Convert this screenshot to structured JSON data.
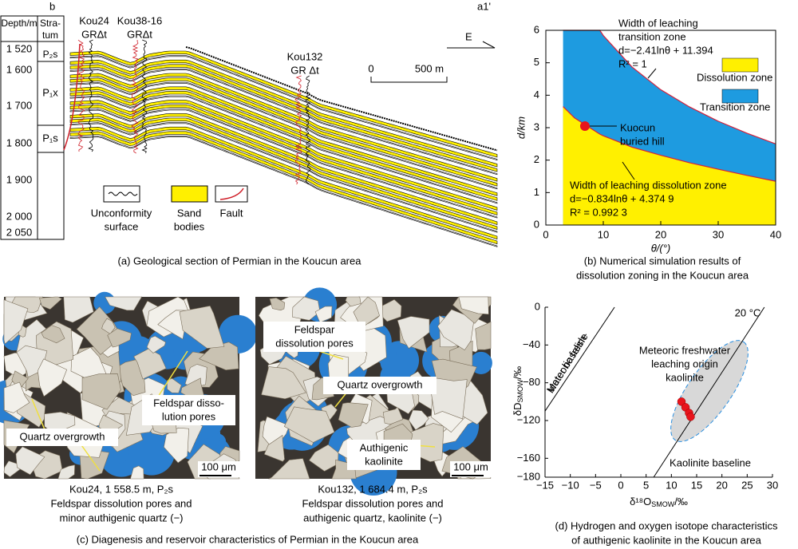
{
  "panel_a": {
    "label": "b",
    "corner_label": "a1'",
    "depth_header": "Depth/m",
    "stratum_header": [
      "Stra-",
      "tum"
    ],
    "depths": [
      "1 520",
      "1 600",
      "1 700",
      "1 800",
      "1 900",
      "2 000",
      "2 050"
    ],
    "strata": [
      "P₂s",
      "P₁x",
      "P₁s"
    ],
    "wells": [
      {
        "name": "Kou24",
        "logs": "GRΔt"
      },
      {
        "name": "Kou38-16",
        "logs": "GRΔt"
      },
      {
        "name": "Kou132",
        "logs": "GR Δt"
      }
    ],
    "direction": "E",
    "scale": [
      "0",
      "500 m"
    ],
    "legend": [
      [
        "Unconformity",
        "surface"
      ],
      [
        "Sand",
        "bodies"
      ],
      [
        "Fault"
      ]
    ],
    "caption": "(a) Geological section of Permian in the Koucun area"
  },
  "chart_data": [
    {
      "type": "area",
      "title": [
        "(b) Numerical simulation results of",
        "dissolution zoning in the Koucun area"
      ],
      "x_label": "θ/(°)",
      "y_label": "d/km",
      "xlim": [
        0,
        40
      ],
      "ylim": [
        0,
        6
      ],
      "xticks": [
        0,
        10,
        20,
        30,
        40
      ],
      "yticks": [
        0,
        1,
        2,
        3,
        4,
        5,
        6
      ],
      "x": [
        3,
        5,
        9.4,
        10,
        15,
        20,
        25,
        30,
        35,
        40
      ],
      "boundary_color": "#d6203a",
      "series": [
        {
          "name": "Transition zone",
          "color": "#1e9be0",
          "values": [
            6,
            6,
            6,
            5.84,
            4.87,
            4.17,
            3.64,
            3.2,
            2.83,
            2.5
          ]
        },
        {
          "name": "Dissolution zone",
          "color": "#fff000",
          "values": [
            3.65,
            3.3,
            2.8,
            2.75,
            2.4,
            2.15,
            1.92,
            1.72,
            1.53,
            1.35
          ]
        }
      ],
      "annotations": [
        [
          "Width of leaching",
          "transition zone",
          "d=−2.41lnθ + 11.394",
          "R² = 1"
        ],
        [
          "Width of leaching dissolution zone",
          "d=−0.834lnθ + 4.374 9",
          "R² = 0.992 3"
        ]
      ],
      "points": [
        {
          "label": [
            "Kuocun",
            "buried hill"
          ],
          "x": 6.8,
          "y": 3.05,
          "color": "#e8141c"
        }
      ]
    },
    {
      "type": "scatter",
      "title": [
        "(d) Hydrogen and oxygen isotope characteristics",
        "of authigenic kaolinite in the Koucun area"
      ],
      "x_label": {
        "main": "δ¹⁸O",
        "sub": "SMOW",
        "unit": "/‰"
      },
      "y_label": {
        "main": "δD",
        "sub": "SMOW",
        "unit": "/‰"
      },
      "xlim": [
        -15,
        30
      ],
      "ylim": [
        -180,
        0
      ],
      "xticks": [
        {
          "value": -15,
          "label": "−15"
        },
        {
          "value": -10,
          "label": "−10"
        },
        {
          "value": -5,
          "label": "−5"
        },
        0,
        5,
        10,
        15,
        20,
        25,
        30
      ],
      "yticks": [
        0,
        {
          "value": -40,
          "label": "−40"
        },
        {
          "value": -80,
          "label": "−80"
        },
        {
          "value": -120,
          "label": "−120"
        },
        {
          "value": -160,
          "label": "−160"
        },
        {
          "value": -180,
          "label": "−180"
        }
      ],
      "series": [
        {
          "color": "#e8141c",
          "x": [
            12,
            12.8,
            13.5,
            13.8
          ],
          "values": [
            -100,
            -106,
            -112,
            -116
          ]
        }
      ],
      "lines": [
        {
          "label": [
            "Meteoric fresh-",
            "water baseline"
          ],
          "x": [
            -15,
            -1.25
          ],
          "values": [
            -110,
            0
          ]
        },
        {
          "label": [
            "Kaolinite baseline"
          ],
          "x": [
            6.5,
            28.4
          ],
          "values": [
            -180,
            0
          ]
        }
      ],
      "annotations": [
        [
          "20 °C"
        ],
        [
          "Meteoric freshwater",
          "leaching origin",
          "kaolinite"
        ]
      ]
    }
  ],
  "panel_c": {
    "photos": [
      {
        "labels": [
          [
            "Feldspar disso-",
            "lution pores"
          ],
          [
            "Quartz overgrowth"
          ]
        ],
        "scale": "100 μm",
        "caption": [
          "Kou24, 1 558.5 m, P₂s",
          "Feldspar dissolution pores and",
          "minor authigenic quartz (−)"
        ]
      },
      {
        "labels": [
          [
            "Feldspar",
            "dissolution pores"
          ],
          [
            "Quartz overgrowth"
          ],
          [
            "Authigenic",
            "kaolinite"
          ]
        ],
        "scale": "100 μm",
        "caption": [
          "Kou132, 1 684.4 m, P₂s",
          "Feldspar dissolution pores and",
          "authigenic quartz, kaolinite (−)"
        ]
      }
    ],
    "caption": "(c) Diagenesis and reservoir characteristics of Permian in the Koucun area"
  }
}
